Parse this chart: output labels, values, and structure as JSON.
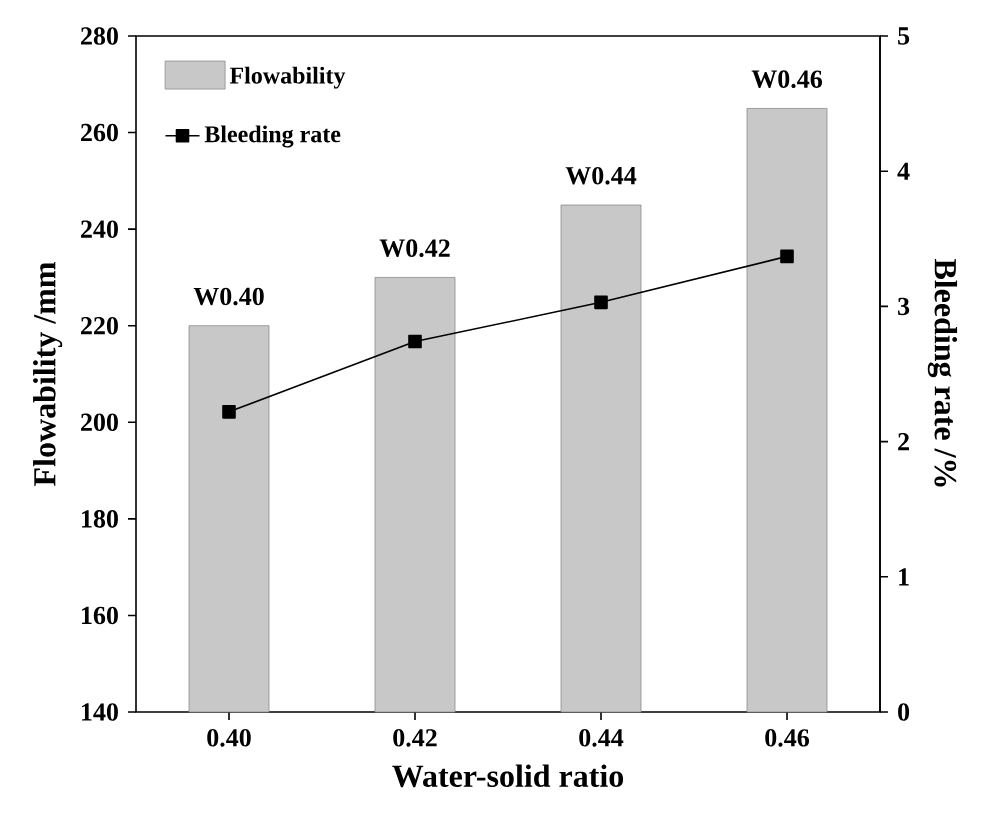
{
  "chart_data": {
    "type": "bar",
    "xlabel": "Water-solid ratio",
    "ylabel": "Flowability /mm",
    "y2label": "Bleeding rate /%",
    "categories": [
      "0.40",
      "0.42",
      "0.44",
      "0.46"
    ],
    "series": [
      {
        "name": "Flowability",
        "color": "#c8c8c8",
        "values": [
          220,
          230,
          245,
          265
        ]
      },
      {
        "name": "Bleeding rate",
        "type": "line",
        "axis": "y2",
        "color": "#000000",
        "values": [
          2.22,
          2.74,
          3.03,
          3.37
        ]
      }
    ],
    "ylim": [
      140,
      280
    ],
    "yticks": [
      140,
      160,
      180,
      200,
      220,
      240,
      260,
      280
    ],
    "y2lim": [
      0,
      5
    ],
    "y2ticks": [
      0,
      1,
      2,
      3,
      4,
      5
    ],
    "marker": "square",
    "legend": "top left",
    "annotations": [
      {
        "text": "W0.40",
        "x": "0.40",
        "y": 220
      },
      {
        "text": "W0.42",
        "x": "0.42",
        "y": 230
      },
      {
        "text": "W0.44",
        "x": "0.44",
        "y": 245
      },
      {
        "text": "W0.46",
        "x": "0.46",
        "y": 265
      }
    ]
  }
}
